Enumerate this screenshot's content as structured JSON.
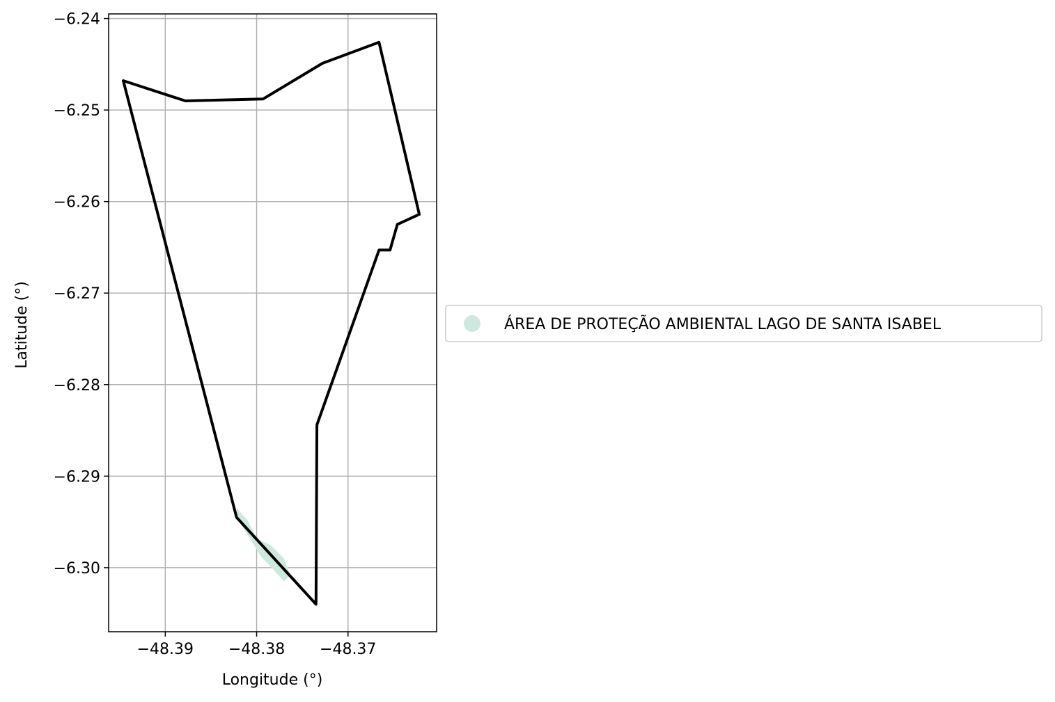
{
  "chart_data": {
    "type": "map",
    "xlabel": "Longitude (°)",
    "ylabel": "Latitude (°)",
    "xlim": [
      -48.3962,
      -48.3603
    ],
    "ylim": [
      -6.307,
      -6.2395
    ],
    "xticks": [
      -48.39,
      -48.38,
      -48.37
    ],
    "xtick_labels": [
      "−48.39",
      "−48.38",
      "−48.37"
    ],
    "yticks": [
      -6.24,
      -6.25,
      -6.26,
      -6.27,
      -6.28,
      -6.29,
      -6.3
    ],
    "ytick_labels": [
      "−6.24",
      "−6.25",
      "−6.26",
      "−6.27",
      "−6.28",
      "−6.29",
      "−6.30"
    ],
    "grid": true,
    "legend_placement": "outside-right",
    "boundary": {
      "color": "#000000",
      "coordinates": [
        [
          -48.3946,
          -6.2468
        ],
        [
          -48.3878,
          -6.249
        ],
        [
          -48.3793,
          -6.2488
        ],
        [
          -48.3728,
          -6.2449
        ],
        [
          -48.3666,
          -6.2426
        ],
        [
          -48.3622,
          -6.2614
        ],
        [
          -48.3646,
          -6.2625
        ],
        [
          -48.3654,
          -6.2653
        ],
        [
          -48.3666,
          -6.2653
        ],
        [
          -48.3734,
          -6.2844
        ],
        [
          -48.3735,
          -6.304
        ],
        [
          -48.3822,
          -6.2945
        ],
        [
          -48.3946,
          -6.2468
        ]
      ]
    },
    "series": [
      {
        "name": "ÁREA DE PROTEÇÃO AMBIENTAL LAGO DE SANTA ISABEL",
        "color": "#cde9dd",
        "coordinates": [
          [
            -48.3822,
            -6.2935
          ],
          [
            -48.381,
            -6.2948
          ],
          [
            -48.38,
            -6.2968
          ],
          [
            -48.3785,
            -6.2975
          ],
          [
            -48.377,
            -6.299
          ],
          [
            -48.3763,
            -6.3008
          ],
          [
            -48.377,
            -6.3015
          ],
          [
            -48.3795,
            -6.2988
          ],
          [
            -48.3822,
            -6.2945
          ]
        ]
      }
    ]
  }
}
